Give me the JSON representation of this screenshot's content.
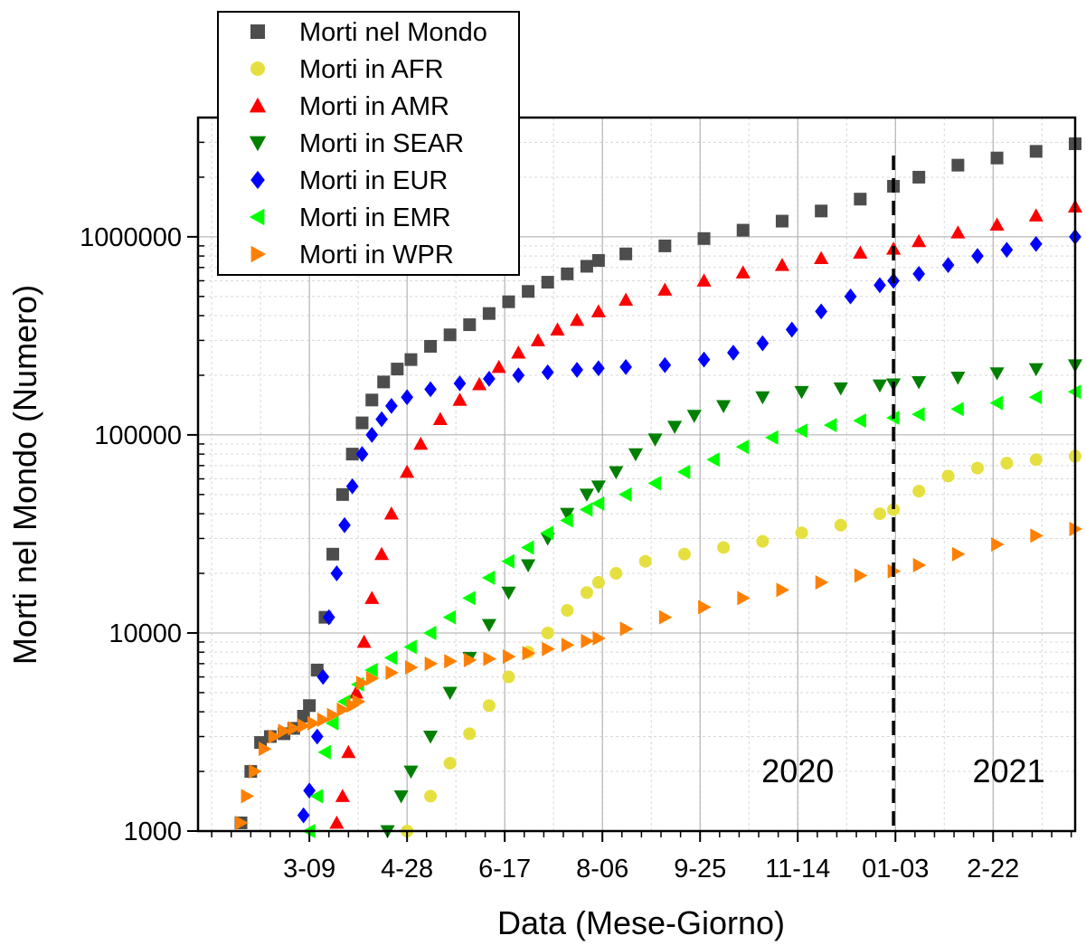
{
  "chart_data": {
    "type": "scatter",
    "xlabel": "Data (Mese-Giorno)",
    "ylabel": "Morti nel Mondo (Numero)",
    "x_unit": "days since 2020-01-01",
    "xlim": [
      11,
      460
    ],
    "ylim": [
      1000,
      4000000
    ],
    "y_scale": "log",
    "grid": true,
    "legend_position": "top-left",
    "x_ticks": [
      {
        "x": 68,
        "label": "3-09"
      },
      {
        "x": 118,
        "label": "4-28"
      },
      {
        "x": 168,
        "label": "6-17"
      },
      {
        "x": 218,
        "label": "8-06"
      },
      {
        "x": 268,
        "label": "9-25"
      },
      {
        "x": 318,
        "label": "11-14"
      },
      {
        "x": 368,
        "label": "01-03"
      },
      {
        "x": 418,
        "label": "2-22"
      }
    ],
    "y_ticks": [
      {
        "y": 1000,
        "label": "1000"
      },
      {
        "y": 10000,
        "label": "10000"
      },
      {
        "y": 100000,
        "label": "100000"
      },
      {
        "y": 1000000,
        "label": "1000000"
      }
    ],
    "reference_line": {
      "x": 367,
      "style": "dashed"
    },
    "annotations": [
      {
        "text": "2020",
        "x": 318,
        "y": 2000
      },
      {
        "text": "2021",
        "x": 426,
        "y": 2000
      }
    ],
    "series": [
      {
        "name": "Morti nel Mondo",
        "color": "#4d4d4d",
        "marker": "square",
        "points": [
          [
            33,
            1100
          ],
          [
            38,
            2000
          ],
          [
            43,
            2800
          ],
          [
            48,
            3000
          ],
          [
            55,
            3100
          ],
          [
            60,
            3300
          ],
          [
            65,
            3800
          ],
          [
            68,
            4300
          ],
          [
            72,
            6500
          ],
          [
            76,
            12000
          ],
          [
            80,
            25000
          ],
          [
            85,
            50000
          ],
          [
            90,
            80000
          ],
          [
            95,
            115000
          ],
          [
            100,
            150000
          ],
          [
            106,
            185000
          ],
          [
            113,
            215000
          ],
          [
            120,
            240000
          ],
          [
            130,
            280000
          ],
          [
            140,
            320000
          ],
          [
            150,
            360000
          ],
          [
            160,
            410000
          ],
          [
            170,
            470000
          ],
          [
            180,
            530000
          ],
          [
            190,
            590000
          ],
          [
            200,
            650000
          ],
          [
            210,
            710000
          ],
          [
            216,
            760000
          ],
          [
            230,
            820000
          ],
          [
            250,
            900000
          ],
          [
            270,
            980000
          ],
          [
            290,
            1080000
          ],
          [
            310,
            1200000
          ],
          [
            330,
            1350000
          ],
          [
            350,
            1550000
          ],
          [
            367,
            1800000
          ],
          [
            380,
            2000000
          ],
          [
            400,
            2300000
          ],
          [
            420,
            2500000
          ],
          [
            440,
            2700000
          ],
          [
            460,
            2950000
          ]
        ]
      },
      {
        "name": "Morti in AFR",
        "color": "#e5e040",
        "marker": "circle",
        "points": [
          [
            118,
            1000
          ],
          [
            130,
            1500
          ],
          [
            140,
            2200
          ],
          [
            150,
            3100
          ],
          [
            160,
            4300
          ],
          [
            170,
            6000
          ],
          [
            180,
            8000
          ],
          [
            190,
            10000
          ],
          [
            200,
            13000
          ],
          [
            210,
            16000
          ],
          [
            216,
            18000
          ],
          [
            225,
            20000
          ],
          [
            240,
            23000
          ],
          [
            260,
            25000
          ],
          [
            280,
            27000
          ],
          [
            300,
            29000
          ],
          [
            320,
            32000
          ],
          [
            340,
            35000
          ],
          [
            360,
            40000
          ],
          [
            367,
            42000
          ],
          [
            380,
            52000
          ],
          [
            395,
            62000
          ],
          [
            410,
            68000
          ],
          [
            425,
            72000
          ],
          [
            440,
            75000
          ],
          [
            460,
            78000
          ]
        ]
      },
      {
        "name": "Morti in AMR",
        "color": "#ff0000",
        "marker": "triangle-up",
        "points": [
          [
            82,
            1100
          ],
          [
            85,
            1500
          ],
          [
            88,
            2500
          ],
          [
            92,
            5000
          ],
          [
            96,
            9000
          ],
          [
            100,
            15000
          ],
          [
            105,
            25000
          ],
          [
            110,
            40000
          ],
          [
            118,
            65000
          ],
          [
            125,
            90000
          ],
          [
            135,
            120000
          ],
          [
            145,
            150000
          ],
          [
            155,
            180000
          ],
          [
            165,
            220000
          ],
          [
            175,
            260000
          ],
          [
            185,
            300000
          ],
          [
            195,
            340000
          ],
          [
            205,
            380000
          ],
          [
            216,
            420000
          ],
          [
            230,
            480000
          ],
          [
            250,
            540000
          ],
          [
            270,
            600000
          ],
          [
            290,
            660000
          ],
          [
            310,
            720000
          ],
          [
            330,
            780000
          ],
          [
            350,
            830000
          ],
          [
            367,
            870000
          ],
          [
            380,
            950000
          ],
          [
            400,
            1050000
          ],
          [
            420,
            1150000
          ],
          [
            440,
            1280000
          ],
          [
            460,
            1420000
          ]
        ]
      },
      {
        "name": "Morti in SEAR",
        "color": "#008000",
        "marker": "triangle-down",
        "points": [
          [
            108,
            1000
          ],
          [
            115,
            1500
          ],
          [
            120,
            2000
          ],
          [
            130,
            3000
          ],
          [
            140,
            5000
          ],
          [
            150,
            7500
          ],
          [
            160,
            11000
          ],
          [
            170,
            16000
          ],
          [
            180,
            22000
          ],
          [
            190,
            30000
          ],
          [
            200,
            40000
          ],
          [
            210,
            50000
          ],
          [
            216,
            55000
          ],
          [
            225,
            65000
          ],
          [
            235,
            80000
          ],
          [
            245,
            95000
          ],
          [
            255,
            110000
          ],
          [
            265,
            125000
          ],
          [
            280,
            140000
          ],
          [
            300,
            155000
          ],
          [
            320,
            165000
          ],
          [
            340,
            172000
          ],
          [
            360,
            178000
          ],
          [
            367,
            180000
          ],
          [
            380,
            185000
          ],
          [
            400,
            195000
          ],
          [
            420,
            205000
          ],
          [
            440,
            215000
          ],
          [
            460,
            225000
          ]
        ]
      },
      {
        "name": "Morti in EUR",
        "color": "#0000ff",
        "marker": "diamond",
        "points": [
          [
            65,
            1200
          ],
          [
            68,
            1600
          ],
          [
            72,
            3000
          ],
          [
            75,
            6000
          ],
          [
            78,
            12000
          ],
          [
            82,
            20000
          ],
          [
            86,
            35000
          ],
          [
            90,
            55000
          ],
          [
            95,
            80000
          ],
          [
            100,
            100000
          ],
          [
            105,
            120000
          ],
          [
            110,
            140000
          ],
          [
            118,
            155000
          ],
          [
            130,
            170000
          ],
          [
            145,
            182000
          ],
          [
            160,
            192000
          ],
          [
            175,
            200000
          ],
          [
            190,
            207000
          ],
          [
            205,
            213000
          ],
          [
            216,
            217000
          ],
          [
            230,
            220000
          ],
          [
            250,
            225000
          ],
          [
            270,
            240000
          ],
          [
            285,
            260000
          ],
          [
            300,
            290000
          ],
          [
            315,
            340000
          ],
          [
            330,
            420000
          ],
          [
            345,
            500000
          ],
          [
            360,
            570000
          ],
          [
            367,
            600000
          ],
          [
            380,
            650000
          ],
          [
            395,
            720000
          ],
          [
            410,
            800000
          ],
          [
            425,
            860000
          ],
          [
            440,
            920000
          ],
          [
            460,
            1000000
          ]
        ]
      },
      {
        "name": "Morti in EMR",
        "color": "#00ff00",
        "marker": "triangle-left",
        "points": [
          [
            68,
            1000
          ],
          [
            72,
            1500
          ],
          [
            76,
            2500
          ],
          [
            80,
            3500
          ],
          [
            86,
            4500
          ],
          [
            93,
            5500
          ],
          [
            100,
            6500
          ],
          [
            110,
            7500
          ],
          [
            120,
            8500
          ],
          [
            130,
            10000
          ],
          [
            140,
            12000
          ],
          [
            150,
            15000
          ],
          [
            160,
            19000
          ],
          [
            170,
            23000
          ],
          [
            180,
            27000
          ],
          [
            190,
            32000
          ],
          [
            200,
            37000
          ],
          [
            210,
            42000
          ],
          [
            216,
            45000
          ],
          [
            230,
            50000
          ],
          [
            245,
            57000
          ],
          [
            260,
            65000
          ],
          [
            275,
            75000
          ],
          [
            290,
            87000
          ],
          [
            305,
            97000
          ],
          [
            320,
            105000
          ],
          [
            335,
            112000
          ],
          [
            350,
            118000
          ],
          [
            367,
            122000
          ],
          [
            380,
            127000
          ],
          [
            400,
            135000
          ],
          [
            420,
            145000
          ],
          [
            440,
            155000
          ],
          [
            460,
            165000
          ]
        ]
      },
      {
        "name": "Morti in WPR",
        "color": "#ff8000",
        "marker": "triangle-right",
        "points": [
          [
            33,
            1100
          ],
          [
            36,
            1500
          ],
          [
            40,
            2000
          ],
          [
            45,
            2600
          ],
          [
            50,
            3000
          ],
          [
            55,
            3200
          ],
          [
            60,
            3300
          ],
          [
            65,
            3400
          ],
          [
            70,
            3500
          ],
          [
            75,
            3650
          ],
          [
            80,
            3850
          ],
          [
            85,
            4100
          ],
          [
            90,
            4300
          ],
          [
            93,
            4500
          ],
          [
            95,
            5600
          ],
          [
            100,
            5900
          ],
          [
            110,
            6300
          ],
          [
            120,
            6700
          ],
          [
            130,
            7000
          ],
          [
            140,
            7200
          ],
          [
            150,
            7300
          ],
          [
            160,
            7400
          ],
          [
            170,
            7600
          ],
          [
            180,
            7900
          ],
          [
            190,
            8300
          ],
          [
            200,
            8700
          ],
          [
            210,
            9100
          ],
          [
            216,
            9400
          ],
          [
            230,
            10500
          ],
          [
            250,
            12000
          ],
          [
            270,
            13500
          ],
          [
            290,
            15000
          ],
          [
            310,
            16500
          ],
          [
            330,
            18000
          ],
          [
            350,
            19500
          ],
          [
            367,
            20500
          ],
          [
            380,
            22000
          ],
          [
            400,
            25000
          ],
          [
            420,
            28000
          ],
          [
            440,
            31000
          ],
          [
            460,
            33500
          ]
        ]
      }
    ]
  }
}
